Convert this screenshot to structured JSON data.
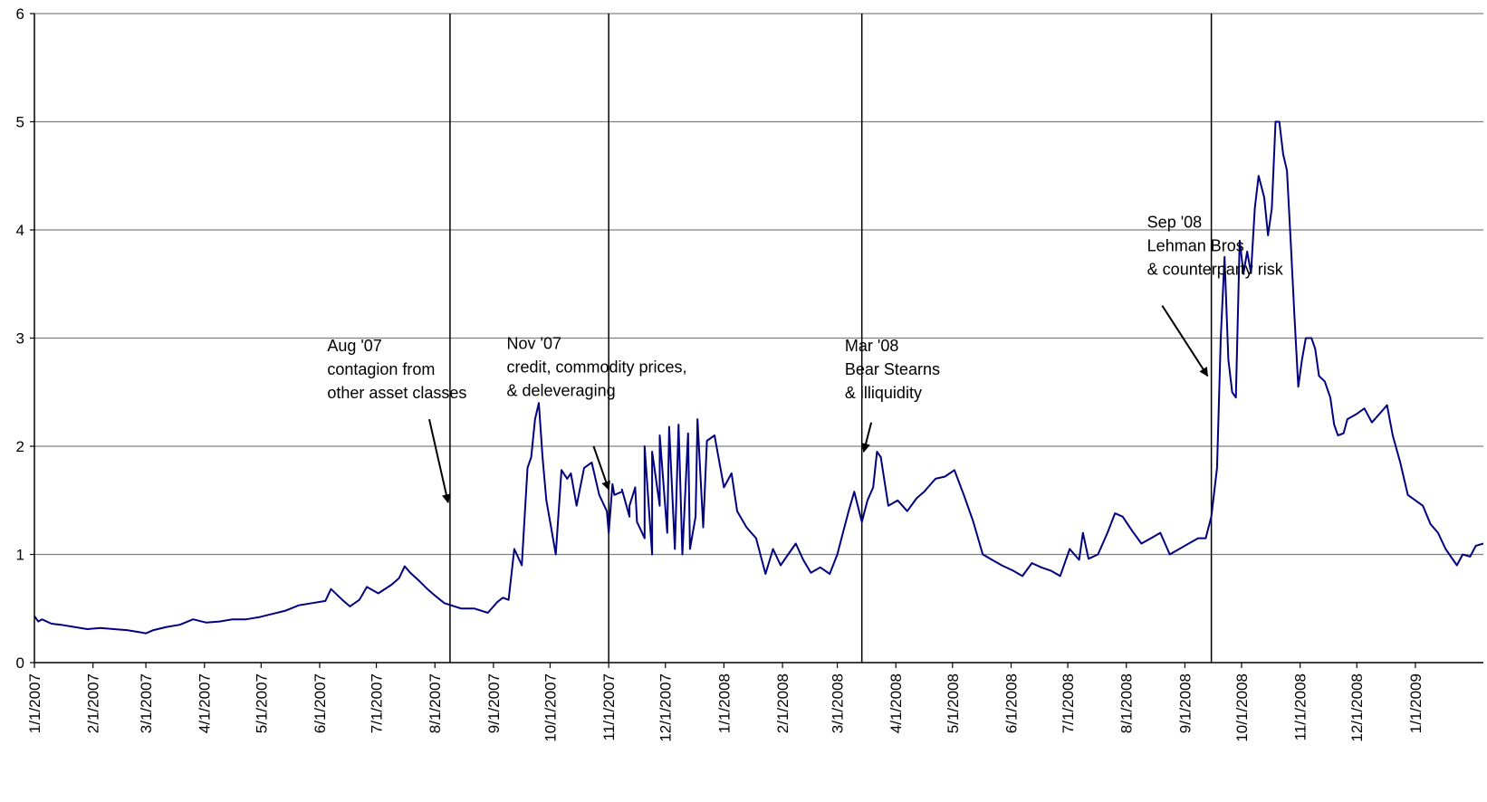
{
  "chart_data": {
    "type": "line",
    "title": "",
    "xlabel": "",
    "ylabel": "",
    "ylim": [
      0,
      6
    ],
    "xlim": [
      "2007-01-01",
      "2009-02-06"
    ],
    "grid": "horizontal",
    "colors": {
      "series": "#000080",
      "grid": "#808080",
      "axis": "#000000"
    },
    "y_ticks": [
      "0",
      "1",
      "2",
      "3",
      "4",
      "5",
      "6"
    ],
    "x_tick_labels": [
      "1/1/2007",
      "2/1/2007",
      "3/1/2007",
      "4/1/2007",
      "5/1/2007",
      "6/1/2007",
      "7/1/2007",
      "8/1/2007",
      "9/1/2007",
      "10/1/2007",
      "11/1/2007",
      "12/1/2007",
      "1/1/2008",
      "2/1/2008",
      "3/1/2008",
      "4/1/2008",
      "5/1/2008",
      "6/1/2008",
      "7/1/2008",
      "8/1/2008",
      "9/1/2008",
      "10/1/2008",
      "11/1/2008",
      "12/1/2008",
      "1/1/2009"
    ],
    "event_lines": [
      "2007-08-09",
      "2007-11-01",
      "2008-03-14",
      "2008-09-15"
    ],
    "annotations": [
      {
        "lines": [
          " Aug '07",
          "contagion from",
          "other asset classes"
        ],
        "date": "2007-06-05",
        "y": 2.88,
        "arrow_from": [
          "2007-07-29",
          2.25
        ],
        "arrow_to": [
          "2007-08-08",
          1.48
        ]
      },
      {
        "lines": [
          " Nov '07",
          "credit, commodity prices,",
          "& deleveraging"
        ],
        "date": "2007-09-08",
        "y": 2.9,
        "arrow_from": [
          "2007-10-24",
          2.0
        ],
        "arrow_to": [
          "2007-11-01",
          1.6
        ]
      },
      {
        "lines": [
          " Mar '08",
          "Bear Stearns",
          "& illiquidity"
        ],
        "date": "2008-03-05",
        "y": 2.88,
        "arrow_from": [
          "2008-03-19",
          2.22
        ],
        "arrow_to": [
          "2008-03-15",
          1.95
        ]
      },
      {
        "lines": [
          " Sep '08",
          "Lehman Bros",
          "& counterparty risk"
        ],
        "date": "2008-08-12",
        "y": 4.02,
        "arrow_from": [
          "2008-08-20",
          3.3
        ],
        "arrow_to": [
          "2008-09-13",
          2.65
        ]
      }
    ],
    "series": [
      {
        "values": [
          [
            "2007-01-01",
            0.43
          ],
          [
            "2007-01-03",
            0.38
          ],
          [
            "2007-01-05",
            0.4
          ],
          [
            "2007-01-10",
            0.36
          ],
          [
            "2007-01-15",
            0.35
          ],
          [
            "2007-01-22",
            0.33
          ],
          [
            "2007-01-29",
            0.31
          ],
          [
            "2007-02-05",
            0.32
          ],
          [
            "2007-02-12",
            0.31
          ],
          [
            "2007-02-19",
            0.3
          ],
          [
            "2007-02-26",
            0.28
          ],
          [
            "2007-03-01",
            0.27
          ],
          [
            "2007-03-05",
            0.3
          ],
          [
            "2007-03-12",
            0.33
          ],
          [
            "2007-03-19",
            0.35
          ],
          [
            "2007-03-26",
            0.4
          ],
          [
            "2007-04-02",
            0.37
          ],
          [
            "2007-04-09",
            0.38
          ],
          [
            "2007-04-16",
            0.4
          ],
          [
            "2007-04-23",
            0.4
          ],
          [
            "2007-04-30",
            0.42
          ],
          [
            "2007-05-07",
            0.45
          ],
          [
            "2007-05-14",
            0.48
          ],
          [
            "2007-05-21",
            0.53
          ],
          [
            "2007-05-28",
            0.55
          ],
          [
            "2007-06-04",
            0.57
          ],
          [
            "2007-06-07",
            0.68
          ],
          [
            "2007-06-13",
            0.58
          ],
          [
            "2007-06-17",
            0.52
          ],
          [
            "2007-06-22",
            0.58
          ],
          [
            "2007-06-26",
            0.7
          ],
          [
            "2007-07-02",
            0.64
          ],
          [
            "2007-07-09",
            0.72
          ],
          [
            "2007-07-13",
            0.78
          ],
          [
            "2007-07-16",
            0.89
          ],
          [
            "2007-07-19",
            0.83
          ],
          [
            "2007-07-24",
            0.75
          ],
          [
            "2007-07-28",
            0.68
          ],
          [
            "2007-08-01",
            0.62
          ],
          [
            "2007-08-06",
            0.55
          ],
          [
            "2007-08-15",
            0.5
          ],
          [
            "2007-08-22",
            0.5
          ],
          [
            "2007-08-29",
            0.46
          ],
          [
            "2007-09-03",
            0.56
          ],
          [
            "2007-09-06",
            0.6
          ],
          [
            "2007-09-09",
            0.58
          ],
          [
            "2007-09-12",
            1.05
          ],
          [
            "2007-09-16",
            0.9
          ],
          [
            "2007-09-19",
            1.8
          ],
          [
            "2007-09-21",
            1.9
          ],
          [
            "2007-09-23",
            2.25
          ],
          [
            "2007-09-25",
            2.4
          ],
          [
            "2007-09-27",
            1.9
          ],
          [
            "2007-09-29",
            1.5
          ],
          [
            "2007-10-01",
            1.3
          ],
          [
            "2007-10-04",
            1.0
          ],
          [
            "2007-10-07",
            1.78
          ],
          [
            "2007-10-10",
            1.7
          ],
          [
            "2007-10-12",
            1.75
          ],
          [
            "2007-10-15",
            1.45
          ],
          [
            "2007-10-19",
            1.8
          ],
          [
            "2007-10-23",
            1.85
          ],
          [
            "2007-10-27",
            1.55
          ],
          [
            "2007-10-31",
            1.4
          ],
          [
            "2007-11-04",
            1.55
          ],
          [
            "2007-11-08",
            1.58
          ],
          [
            "2007-11-12",
            1.35
          ],
          [
            "2007-11-16",
            1.3
          ],
          [
            "2007-11-20",
            1.15
          ],
          [
            "2007-11-24",
            1.0
          ],
          [
            "2007-11-28",
            1.45
          ],
          [
            "2007-12-02",
            1.2
          ],
          [
            "2007-12-06",
            1.05
          ],
          [
            "2007-12-10",
            1.0
          ],
          [
            "2007-12-14",
            1.05
          ],
          [
            "2007-12-17",
            1.35
          ],
          [
            "2007-12-21",
            1.25
          ],
          [
            "2007-11-01",
            1.2
          ],
          [
            "2007-11-03",
            1.65
          ],
          [
            "2007-11-08",
            1.6
          ],
          [
            "2007-11-12",
            1.45
          ],
          [
            "2007-11-15",
            1.62
          ],
          [
            "2007-11-20",
            2.0
          ],
          [
            "2007-11-24",
            1.95
          ],
          [
            "2007-11-28",
            2.1
          ],
          [
            "2007-12-03",
            2.18
          ],
          [
            "2007-12-08",
            2.2
          ],
          [
            "2007-12-13",
            2.12
          ],
          [
            "2007-12-18",
            2.25
          ],
          [
            "2007-12-23",
            2.05
          ],
          [
            "2007-12-27",
            2.1
          ],
          [
            "2008-01-01",
            1.62
          ],
          [
            "2008-01-05",
            1.75
          ],
          [
            "2008-01-08",
            1.4
          ],
          [
            "2008-01-13",
            1.25
          ],
          [
            "2008-01-18",
            1.15
          ],
          [
            "2008-01-23",
            0.82
          ],
          [
            "2008-01-27",
            1.05
          ],
          [
            "2008-01-31",
            0.9
          ],
          [
            "2008-02-04",
            1.0
          ],
          [
            "2008-02-08",
            1.1
          ],
          [
            "2008-02-12",
            0.95
          ],
          [
            "2008-02-16",
            0.83
          ],
          [
            "2008-02-21",
            0.88
          ],
          [
            "2008-02-26",
            0.82
          ],
          [
            "2008-03-01",
            1.0
          ],
          [
            "2008-03-04",
            1.2
          ],
          [
            "2008-03-07",
            1.4
          ],
          [
            "2008-03-10",
            1.58
          ],
          [
            "2008-03-14",
            1.3
          ],
          [
            "2008-03-17",
            1.5
          ],
          [
            "2008-03-20",
            1.62
          ],
          [
            "2008-03-22",
            1.95
          ],
          [
            "2008-03-24",
            1.9
          ],
          [
            "2008-03-28",
            1.45
          ],
          [
            "2008-04-02",
            1.5
          ],
          [
            "2008-04-07",
            1.4
          ],
          [
            "2008-04-12",
            1.52
          ],
          [
            "2008-04-16",
            1.58
          ],
          [
            "2008-04-22",
            1.7
          ],
          [
            "2008-04-27",
            1.72
          ],
          [
            "2008-05-02",
            1.78
          ],
          [
            "2008-05-07",
            1.55
          ],
          [
            "2008-05-12",
            1.3
          ],
          [
            "2008-05-17",
            1.0
          ],
          [
            "2008-05-22",
            0.95
          ],
          [
            "2008-05-27",
            0.9
          ],
          [
            "2008-06-02",
            0.85
          ],
          [
            "2008-06-07",
            0.8
          ],
          [
            "2008-06-12",
            0.92
          ],
          [
            "2008-06-17",
            0.88
          ],
          [
            "2008-06-22",
            0.85
          ],
          [
            "2008-06-27",
            0.8
          ],
          [
            "2008-07-02",
            1.05
          ],
          [
            "2008-07-07",
            0.95
          ],
          [
            "2008-07-09",
            1.2
          ],
          [
            "2008-07-12",
            0.96
          ],
          [
            "2008-07-17",
            1.0
          ],
          [
            "2008-07-22",
            1.2
          ],
          [
            "2008-07-26",
            1.38
          ],
          [
            "2008-07-30",
            1.35
          ],
          [
            "2008-08-04",
            1.22
          ],
          [
            "2008-08-09",
            1.1
          ],
          [
            "2008-08-14",
            1.15
          ],
          [
            "2008-08-19",
            1.2
          ],
          [
            "2008-08-24",
            1.0
          ],
          [
            "2008-08-29",
            1.05
          ],
          [
            "2008-09-03",
            1.1
          ],
          [
            "2008-09-08",
            1.15
          ],
          [
            "2008-09-12",
            1.15
          ],
          [
            "2008-09-15",
            1.35
          ],
          [
            "2008-09-18",
            1.8
          ],
          [
            "2008-09-20",
            3.0
          ],
          [
            "2008-09-22",
            3.75
          ],
          [
            "2008-09-24",
            2.8
          ],
          [
            "2008-09-26",
            2.5
          ],
          [
            "2008-09-28",
            2.45
          ],
          [
            "2008-09-30",
            3.9
          ],
          [
            "2008-10-02",
            3.6
          ],
          [
            "2008-10-04",
            3.8
          ],
          [
            "2008-10-06",
            3.6
          ],
          [
            "2008-10-08",
            4.2
          ],
          [
            "2008-10-10",
            4.5
          ],
          [
            "2008-10-13",
            4.3
          ],
          [
            "2008-10-15",
            3.95
          ],
          [
            "2008-10-17",
            4.2
          ],
          [
            "2008-10-19",
            5.0
          ],
          [
            "2008-10-21",
            5.0
          ],
          [
            "2008-10-23",
            4.7
          ],
          [
            "2008-10-25",
            4.55
          ],
          [
            "2008-10-27",
            3.9
          ],
          [
            "2008-10-29",
            3.2
          ],
          [
            "2008-10-31",
            2.55
          ],
          [
            "2008-11-02",
            2.8
          ],
          [
            "2008-11-04",
            3.0
          ],
          [
            "2008-11-07",
            3.0
          ],
          [
            "2008-11-09",
            2.9
          ],
          [
            "2008-11-11",
            2.65
          ],
          [
            "2008-11-14",
            2.6
          ],
          [
            "2008-11-17",
            2.45
          ],
          [
            "2008-11-19",
            2.2
          ],
          [
            "2008-11-21",
            2.1
          ],
          [
            "2008-11-24",
            2.12
          ],
          [
            "2008-11-26",
            2.25
          ],
          [
            "2008-12-01",
            2.3
          ],
          [
            "2008-12-05",
            2.35
          ],
          [
            "2008-12-09",
            2.22
          ],
          [
            "2008-12-13",
            2.3
          ],
          [
            "2008-12-17",
            2.38
          ],
          [
            "2008-12-20",
            2.1
          ],
          [
            "2008-12-24",
            1.85
          ],
          [
            "2008-12-28",
            1.55
          ],
          [
            "2009-01-01",
            1.5
          ],
          [
            "2009-01-05",
            1.45
          ],
          [
            "2009-01-09",
            1.28
          ],
          [
            "2009-01-13",
            1.2
          ],
          [
            "2009-01-17",
            1.05
          ],
          [
            "2009-01-21",
            0.95
          ],
          [
            "2009-01-23",
            0.9
          ],
          [
            "2009-01-26",
            1.0
          ],
          [
            "2009-01-30",
            0.98
          ],
          [
            "2009-02-02",
            1.08
          ],
          [
            "2009-02-06",
            1.1
          ]
        ]
      }
    ]
  }
}
